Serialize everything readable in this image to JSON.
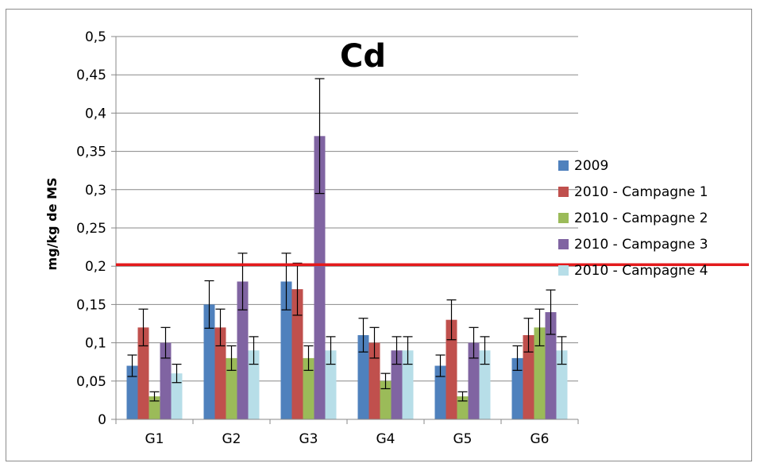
{
  "chart_data": {
    "type": "bar",
    "title": "Cd",
    "xlabel": "",
    "ylabel": "mg/kg de MS",
    "ylim": [
      0,
      0.5
    ],
    "ytick_values": [
      0,
      0.05,
      0.1,
      0.15,
      0.2,
      0.25,
      0.3,
      0.35,
      0.4,
      0.45,
      0.5
    ],
    "ytick_labels": [
      "0",
      "0,05",
      "0,1",
      "0,15",
      "0,2",
      "0,25",
      "0,3",
      "0,35",
      "0,4",
      "0,45",
      "0,5"
    ],
    "grid": true,
    "legend_position": "right",
    "categories": [
      "G1",
      "G2",
      "G3",
      "G4",
      "G5",
      "G6"
    ],
    "series": [
      {
        "name": "2009",
        "color": "#4f81bd",
        "values": [
          0.07,
          0.15,
          0.18,
          0.11,
          0.07,
          0.08
        ],
        "errors": [
          0.014,
          0.031,
          0.037,
          0.022,
          0.014,
          0.016
        ]
      },
      {
        "name": "2010 - Campagne 1",
        "color": "#c0504d",
        "values": [
          0.12,
          0.12,
          0.17,
          0.1,
          0.13,
          0.11
        ],
        "errors": [
          0.024,
          0.024,
          0.034,
          0.02,
          0.026,
          0.022
        ]
      },
      {
        "name": "2010 - Campagne 2",
        "color": "#9bbb59",
        "values": [
          0.03,
          0.08,
          0.08,
          0.05,
          0.03,
          0.12
        ],
        "errors": [
          0.006,
          0.016,
          0.016,
          0.01,
          0.006,
          0.024
        ]
      },
      {
        "name": "2010 - Campagne 3",
        "color": "#8064a2",
        "values": [
          0.1,
          0.18,
          0.37,
          0.09,
          0.1,
          0.14
        ],
        "errors": [
          0.02,
          0.037,
          0.075,
          0.018,
          0.02,
          0.029
        ]
      },
      {
        "name": "2010 - Campagne 4",
        "color": "#b7dee8",
        "values": [
          0.06,
          0.09,
          0.09,
          0.09,
          0.09,
          0.09
        ],
        "errors": [
          0.012,
          0.018,
          0.018,
          0.018,
          0.018,
          0.018
        ]
      }
    ],
    "reference_line": {
      "value": 0.202,
      "color": "#e31a1c"
    }
  }
}
